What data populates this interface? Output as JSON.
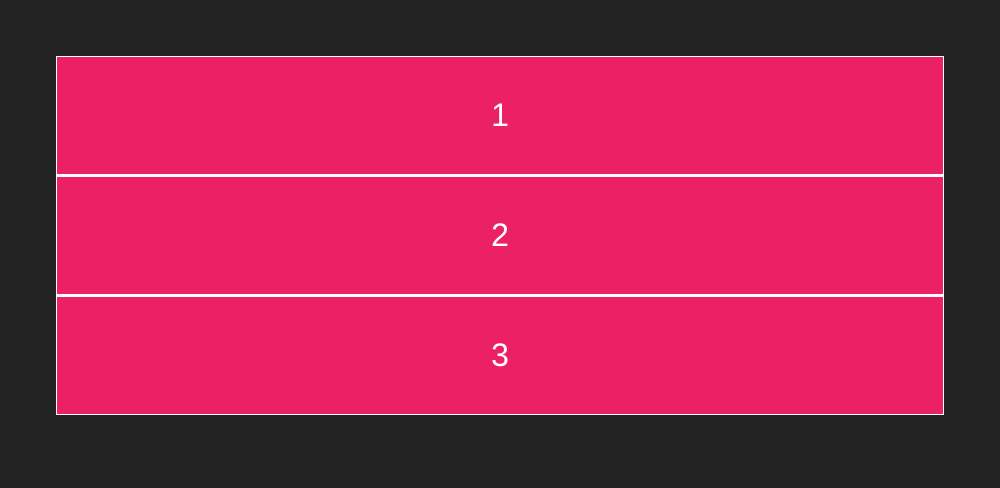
{
  "colors": {
    "background": "#232323",
    "cell_fill": "#EC2165",
    "border": "#FFFFFF",
    "text": "#FFFFFF"
  },
  "cells": [
    {
      "label": "1"
    },
    {
      "label": "2"
    },
    {
      "label": "3"
    }
  ]
}
